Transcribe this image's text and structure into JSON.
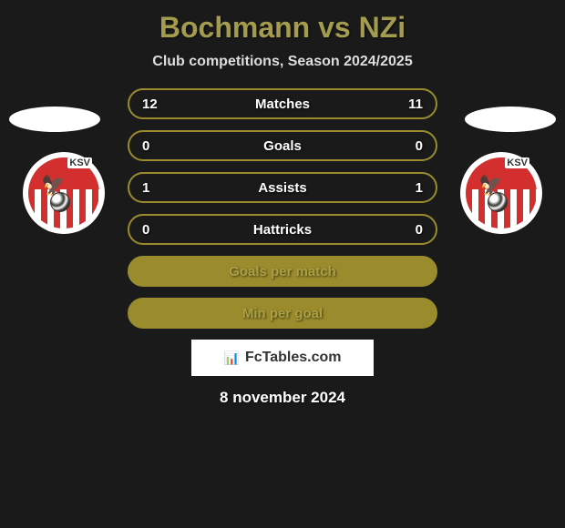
{
  "title": {
    "player1": "Bochmann",
    "vs": "vs",
    "player2": "NZi",
    "color": "#a39b4e"
  },
  "subtitle": "Club competitions, Season 2024/2025",
  "badge": {
    "label": "KSV",
    "shield_red": "#d32f2f",
    "shield_white": "#ffffff"
  },
  "stats": [
    {
      "left_val": "12",
      "label": "Matches",
      "right_val": "11",
      "filled": false
    },
    {
      "left_val": "0",
      "label": "Goals",
      "right_val": "0",
      "filled": false
    },
    {
      "left_val": "1",
      "label": "Assists",
      "right_val": "1",
      "filled": false
    },
    {
      "left_val": "0",
      "label": "Hattricks",
      "right_val": "0",
      "filled": false
    },
    {
      "left_val": "",
      "label": "Goals per match",
      "right_val": "",
      "filled": true
    },
    {
      "left_val": "",
      "label": "Min per goal",
      "right_val": "",
      "filled": true
    }
  ],
  "colors": {
    "border": "#9a8b2d",
    "fill": "#9a8b2d",
    "bg": "#1a1a1a",
    "label_outline": "#ffffff",
    "label_filled": "#aba041"
  },
  "footer": {
    "brand": "FcTables.com"
  },
  "date": "8 november 2024"
}
